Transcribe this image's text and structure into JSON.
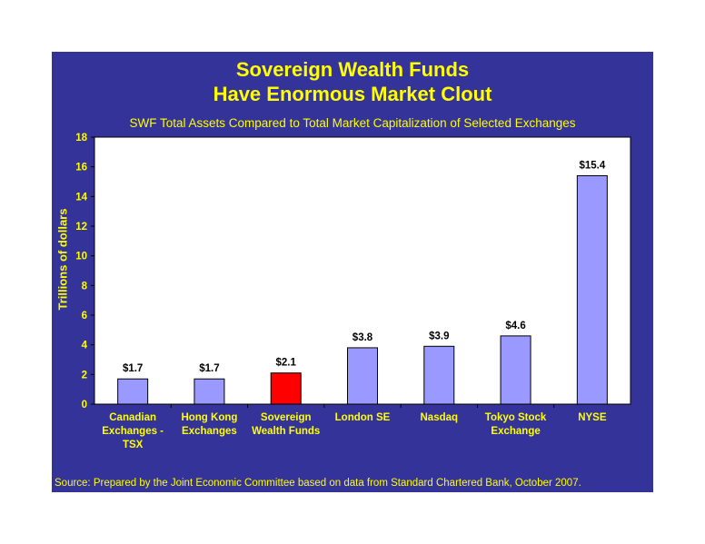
{
  "chart_data": {
    "type": "bar",
    "title": [
      "Sovereign Wealth Funds",
      "Have Enormous Market Clout"
    ],
    "subtitle": "SWF Total Assets Compared to Total Market Capitalization of Selected Exchanges",
    "ylabel": "Trillions of dollars",
    "xlabel": "",
    "ylim": [
      0,
      18
    ],
    "yticks": [
      0,
      2,
      4,
      6,
      8,
      10,
      12,
      14,
      16,
      18
    ],
    "grid": false,
    "categories": [
      [
        "Canadian",
        "Exchanges -",
        "TSX"
      ],
      [
        "Hong Kong",
        "Exchanges"
      ],
      [
        "Sovereign",
        "Wealth Funds"
      ],
      [
        "London SE"
      ],
      [
        "Nasdaq"
      ],
      [
        "Tokyo Stock",
        "Exchange"
      ],
      [
        "NYSE"
      ]
    ],
    "values": [
      1.7,
      1.7,
      2.1,
      3.8,
      3.9,
      4.6,
      15.4
    ],
    "data_labels": [
      "$1.7",
      "$1.7",
      "$2.1",
      "$3.8",
      "$3.9",
      "$4.6",
      "$15.4"
    ],
    "highlight_index": 2
  },
  "colors": {
    "background": "#333399",
    "plot_area": "#ffffff",
    "bar": "#9999ff",
    "highlight_bar": "#ff0000",
    "text": "#ffff00"
  },
  "source": "Source: Prepared by the Joint Economic Committee based on data from Standard Chartered Bank, October 2007."
}
